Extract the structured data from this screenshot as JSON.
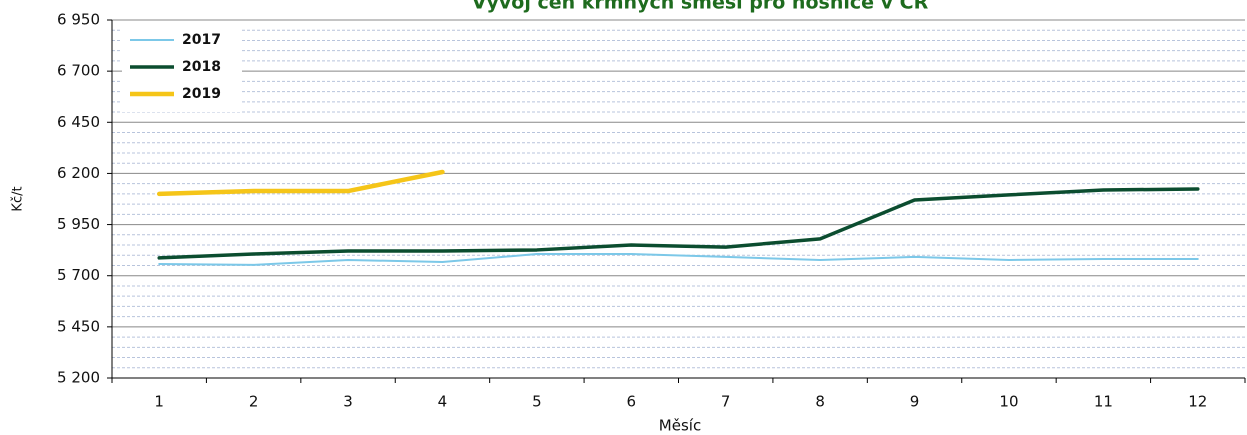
{
  "chart_data": {
    "type": "line",
    "title": "Vývoj cen krmných směsí pro nosnice v ČR",
    "xlabel": "Měsíc",
    "ylabel": "Kč/t",
    "categories": [
      "1",
      "2",
      "3",
      "4",
      "5",
      "6",
      "7",
      "8",
      "9",
      "10",
      "11",
      "12"
    ],
    "series": [
      {
        "name": "2017",
        "color": "#7cc8e8",
        "width": 2,
        "values": [
          5757,
          5753,
          5777,
          5767,
          5806,
          5806,
          5792,
          5777,
          5792,
          5777,
          5782,
          5782
        ]
      },
      {
        "name": "2018",
        "color": "#0b4d2f",
        "width": 3.5,
        "values": [
          5787,
          5806,
          5821,
          5821,
          5826,
          5850,
          5840,
          5880,
          6070,
          6095,
          6119,
          6124
        ]
      },
      {
        "name": "2019",
        "color": "#f5c518",
        "width": 4.5,
        "values": [
          6100,
          6114,
          6114,
          6207,
          null,
          null,
          null,
          null,
          null,
          null,
          null,
          null
        ]
      }
    ],
    "ylim": [
      5200,
      6950
    ],
    "yticks": [
      {
        "value": 5200,
        "label": "5 200"
      },
      {
        "value": 5450,
        "label": "5 450"
      },
      {
        "value": 5700,
        "label": "5 700"
      },
      {
        "value": 5950,
        "label": "5 950"
      },
      {
        "value": 6200,
        "label": "6 200"
      },
      {
        "value": 6450,
        "label": "6 450"
      },
      {
        "value": 6700,
        "label": "6 700"
      },
      {
        "value": 6950,
        "label": "6 950"
      }
    ],
    "grid": true,
    "legend": "upper left"
  }
}
